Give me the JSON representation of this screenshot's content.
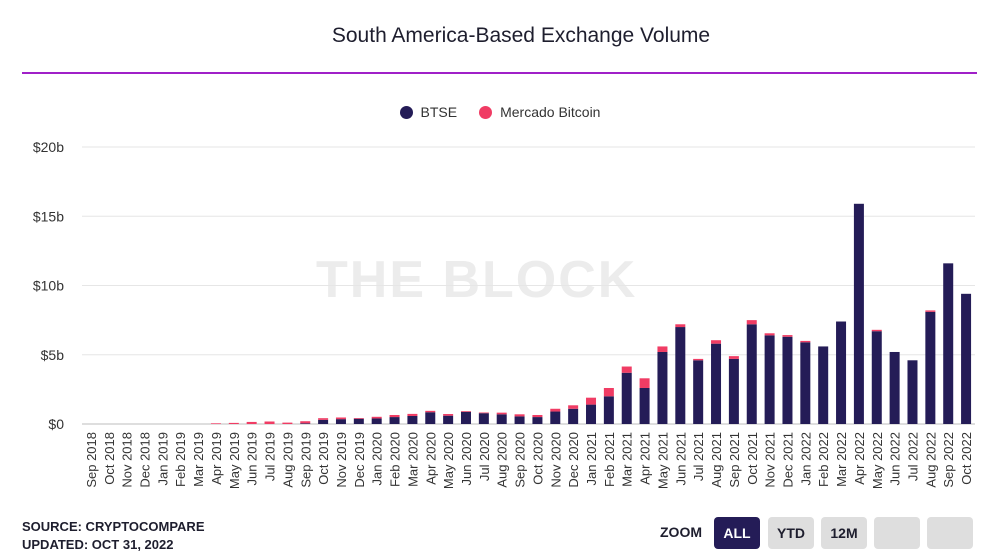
{
  "chart_data": {
    "type": "bar",
    "stacked": true,
    "title": "South America-Based Exchange Volume",
    "xlabel": "",
    "ylabel": "",
    "ylim": [
      0,
      20
    ],
    "yticks": [
      "$0",
      "$5b",
      "$10b",
      "$15b",
      "$20b"
    ],
    "grid": true,
    "legend_position": "top-center",
    "categories": [
      "Sep 2018",
      "Oct 2018",
      "Nov 2018",
      "Dec 2018",
      "Jan 2019",
      "Feb 2019",
      "Mar 2019",
      "Apr 2019",
      "May 2019",
      "Jun 2019",
      "Jul 2019",
      "Aug 2019",
      "Sep 2019",
      "Oct 2019",
      "Nov 2019",
      "Dec 2019",
      "Jan 2020",
      "Feb 2020",
      "Mar 2020",
      "Apr 2020",
      "May 2020",
      "Jun 2020",
      "Jul 2020",
      "Aug 2020",
      "Sep 2020",
      "Oct 2020",
      "Nov 2020",
      "Dec 2020",
      "Jan 2021",
      "Feb 2021",
      "Mar 2021",
      "Apr 2021",
      "May 2021",
      "Jun 2021",
      "Jul 2021",
      "Aug 2021",
      "Sep 2021",
      "Oct 2021",
      "Nov 2021",
      "Dec 2021",
      "Jan 2022",
      "Feb 2022",
      "Mar 2022",
      "Apr 2022",
      "May 2022",
      "Jun 2022",
      "Jul 2022",
      "Aug 2022",
      "Sep 2022",
      "Oct 2022"
    ],
    "series": [
      {
        "name": "BTSE",
        "color": "#241c57",
        "values": [
          0,
          0,
          0,
          0,
          0,
          0,
          0,
          0,
          0,
          0,
          0,
          0,
          0.05,
          0.3,
          0.35,
          0.38,
          0.4,
          0.5,
          0.58,
          0.85,
          0.6,
          0.88,
          0.78,
          0.7,
          0.55,
          0.5,
          0.9,
          1.1,
          1.4,
          2.0,
          3.7,
          2.6,
          5.2,
          7.0,
          4.6,
          5.8,
          4.7,
          7.2,
          6.4,
          6.3,
          5.9,
          5.6,
          7.4,
          15.9,
          6.7,
          5.2,
          4.6,
          8.1,
          11.6,
          9.4
        ]
      },
      {
        "name": "Mercado Bitcoin",
        "color": "#f03c64",
        "values": [
          0,
          0,
          0,
          0,
          0,
          0,
          0,
          0.05,
          0.08,
          0.15,
          0.18,
          0.1,
          0.15,
          0.12,
          0.12,
          0.05,
          0.12,
          0.15,
          0.15,
          0.1,
          0.12,
          0.05,
          0.05,
          0.12,
          0.15,
          0.15,
          0.2,
          0.25,
          0.5,
          0.6,
          0.45,
          0.7,
          0.4,
          0.2,
          0.1,
          0.25,
          0.2,
          0.3,
          0.15,
          0.12,
          0.1,
          0,
          0,
          0,
          0.1,
          0,
          0,
          0.1,
          0,
          0
        ]
      }
    ]
  },
  "watermark": "THE BLOCK",
  "footer": {
    "source": "SOURCE: CRYPTOCOMPARE",
    "updated": "UPDATED: OCT 31, 2022"
  },
  "zoom": {
    "label": "ZOOM",
    "buttons": [
      "ALL",
      "YTD",
      "12M",
      "",
      ""
    ],
    "active": "ALL"
  }
}
